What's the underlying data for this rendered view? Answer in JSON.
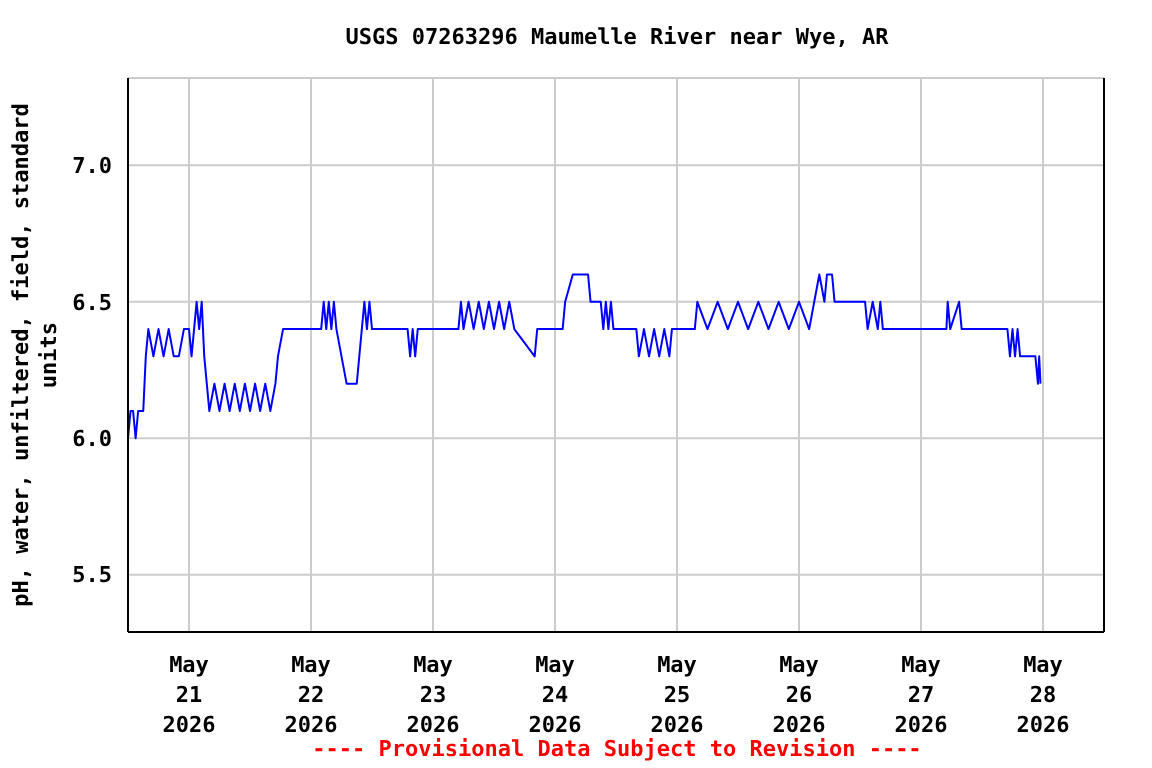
{
  "chart_data": {
    "type": "line",
    "title": "USGS 07263296 Maumelle River near Wye, AR",
    "ylabel": "pH, water, unfiltered, field, standard units",
    "annotations": [
      "---- Provisional Data Subject to Revision ----"
    ],
    "xlim": [
      "2026-05-20T12:00",
      "2026-05-28T12:00"
    ],
    "xticks": [
      {
        "value": "2026-05-21",
        "label": "May 21 2026"
      },
      {
        "value": "2026-05-22",
        "label": "May 22 2026"
      },
      {
        "value": "2026-05-23",
        "label": "May 23 2026"
      },
      {
        "value": "2026-05-24",
        "label": "May 24 2026"
      },
      {
        "value": "2026-05-25",
        "label": "May 25 2026"
      },
      {
        "value": "2026-05-26",
        "label": "May 26 2026"
      },
      {
        "value": "2026-05-27",
        "label": "May 27 2026"
      },
      {
        "value": "2026-05-28",
        "label": "May 28 2026"
      }
    ],
    "ylim": [
      5.29,
      7.32
    ],
    "yticks": [
      {
        "value": 5.5,
        "label": "5.5"
      },
      {
        "value": 6.0,
        "label": "6.0"
      },
      {
        "value": 6.5,
        "label": "6.5"
      },
      {
        "value": 7.0,
        "label": "7.0"
      }
    ],
    "grid": true,
    "series": [
      {
        "color": "#0000ff",
        "x": [
          "2026-05-20T12:00",
          "2026-05-20T12:30",
          "2026-05-20T13:00",
          "2026-05-20T13:30",
          "2026-05-20T14:00",
          "2026-05-20T15:00",
          "2026-05-20T15:15",
          "2026-05-20T15:30",
          "2026-05-20T16:00",
          "2026-05-20T17:00",
          "2026-05-20T18:00",
          "2026-05-20T19:00",
          "2026-05-20T20:00",
          "2026-05-20T21:00",
          "2026-05-20T22:00",
          "2026-05-20T23:00",
          "2026-05-21T00:00",
          "2026-05-21T00:30",
          "2026-05-21T01:00",
          "2026-05-21T01:30",
          "2026-05-21T02:00",
          "2026-05-21T02:30",
          "2026-05-21T03:00",
          "2026-05-21T03:30",
          "2026-05-21T04:00",
          "2026-05-21T05:00",
          "2026-05-21T06:00",
          "2026-05-21T07:00",
          "2026-05-21T08:00",
          "2026-05-21T09:00",
          "2026-05-21T10:00",
          "2026-05-21T11:00",
          "2026-05-21T12:00",
          "2026-05-21T13:00",
          "2026-05-21T14:00",
          "2026-05-21T15:00",
          "2026-05-21T16:00",
          "2026-05-21T17:00",
          "2026-05-21T17:30",
          "2026-05-21T18:30",
          "2026-05-22T02:00",
          "2026-05-22T02:30",
          "2026-05-22T03:00",
          "2026-05-22T03:30",
          "2026-05-22T04:00",
          "2026-05-22T04:30",
          "2026-05-22T05:00",
          "2026-05-22T06:00",
          "2026-05-22T07:00",
          "2026-05-22T09:00",
          "2026-05-22T09:30",
          "2026-05-22T10:00",
          "2026-05-22T10:30",
          "2026-05-22T11:00",
          "2026-05-22T11:30",
          "2026-05-22T12:00",
          "2026-05-22T19:00",
          "2026-05-22T19:30",
          "2026-05-22T20:00",
          "2026-05-22T20:30",
          "2026-05-22T21:00",
          "2026-05-23T05:00",
          "2026-05-23T05:30",
          "2026-05-23T06:00",
          "2026-05-23T07:00",
          "2026-05-23T08:00",
          "2026-05-23T09:00",
          "2026-05-23T10:00",
          "2026-05-23T11:00",
          "2026-05-23T12:00",
          "2026-05-23T13:00",
          "2026-05-23T14:00",
          "2026-05-23T15:00",
          "2026-05-23T16:00",
          "2026-05-23T20:00",
          "2026-05-23T20:30",
          "2026-05-24T01:30",
          "2026-05-24T02:00",
          "2026-05-24T03:30",
          "2026-05-24T06:30",
          "2026-05-24T07:00",
          "2026-05-24T09:00",
          "2026-05-24T09:30",
          "2026-05-24T10:00",
          "2026-05-24T10:30",
          "2026-05-24T11:00",
          "2026-05-24T11:30",
          "2026-05-24T16:00",
          "2026-05-24T16:30",
          "2026-05-24T17:30",
          "2026-05-24T18:30",
          "2026-05-24T19:30",
          "2026-05-24T20:30",
          "2026-05-24T21:30",
          "2026-05-24T22:30",
          "2026-05-24T23:00",
          "2026-05-25T03:30",
          "2026-05-25T04:00",
          "2026-05-25T06:00",
          "2026-05-25T08:00",
          "2026-05-25T10:00",
          "2026-05-25T12:00",
          "2026-05-25T14:00",
          "2026-05-25T16:00",
          "2026-05-25T18:00",
          "2026-05-25T20:00",
          "2026-05-25T22:00",
          "2026-05-26T00:00",
          "2026-05-26T02:00",
          "2026-05-26T03:00",
          "2026-05-26T04:00",
          "2026-05-26T05:00",
          "2026-05-26T05:30",
          "2026-05-26T06:30",
          "2026-05-26T07:00",
          "2026-05-26T13:00",
          "2026-05-26T13:30",
          "2026-05-26T14:30",
          "2026-05-26T15:30",
          "2026-05-26T16:00",
          "2026-05-26T16:30",
          "2026-05-27T05:00",
          "2026-05-27T05:15",
          "2026-05-27T05:45",
          "2026-05-27T07:30",
          "2026-05-27T08:00",
          "2026-05-27T17:00",
          "2026-05-27T17:30",
          "2026-05-27T18:00",
          "2026-05-27T18:30",
          "2026-05-27T19:00",
          "2026-05-27T19:30",
          "2026-05-27T22:30",
          "2026-05-27T23:00",
          "2026-05-27T23:15",
          "2026-05-27T23:30"
        ],
        "values": [
          6.0,
          6.1,
          6.1,
          6.0,
          6.1,
          6.1,
          6.2,
          6.3,
          6.4,
          6.3,
          6.4,
          6.3,
          6.4,
          6.3,
          6.3,
          6.4,
          6.4,
          6.3,
          6.4,
          6.5,
          6.4,
          6.5,
          6.3,
          6.2,
          6.1,
          6.2,
          6.1,
          6.2,
          6.1,
          6.2,
          6.1,
          6.2,
          6.1,
          6.2,
          6.1,
          6.2,
          6.1,
          6.2,
          6.3,
          6.4,
          6.4,
          6.5,
          6.4,
          6.5,
          6.4,
          6.5,
          6.4,
          6.3,
          6.2,
          6.2,
          6.3,
          6.4,
          6.5,
          6.4,
          6.5,
          6.4,
          6.4,
          6.3,
          6.4,
          6.3,
          6.4,
          6.4,
          6.5,
          6.4,
          6.5,
          6.4,
          6.5,
          6.4,
          6.5,
          6.4,
          6.5,
          6.4,
          6.5,
          6.4,
          6.3,
          6.4,
          6.4,
          6.5,
          6.6,
          6.6,
          6.5,
          6.5,
          6.4,
          6.5,
          6.4,
          6.5,
          6.4,
          6.4,
          6.3,
          6.4,
          6.3,
          6.4,
          6.3,
          6.4,
          6.3,
          6.4,
          6.4,
          6.5,
          6.4,
          6.5,
          6.4,
          6.5,
          6.4,
          6.5,
          6.4,
          6.5,
          6.4,
          6.5,
          6.4,
          6.5,
          6.6,
          6.5,
          6.6,
          6.6,
          6.5,
          6.5,
          6.4,
          6.5,
          6.4,
          6.5,
          6.4,
          6.4,
          6.5,
          6.4,
          6.5,
          6.4,
          6.4,
          6.3,
          6.4,
          6.3,
          6.4,
          6.3,
          6.3,
          6.2,
          6.3,
          6.2
        ]
      }
    ]
  }
}
